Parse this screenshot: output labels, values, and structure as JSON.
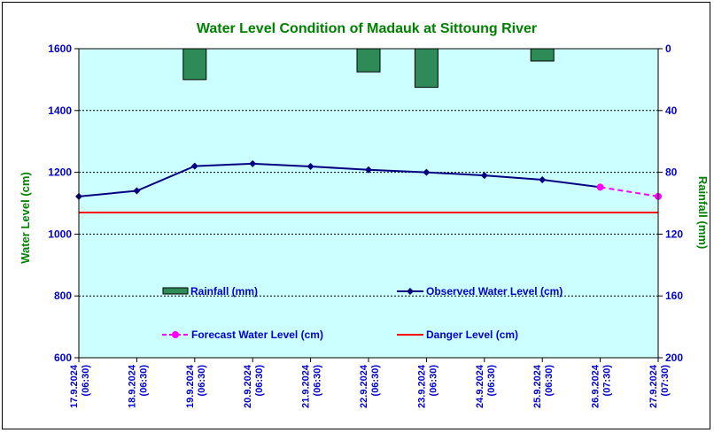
{
  "chart_data": {
    "type": "line",
    "title": "Water Level Condition of Madauk at Sittoung River",
    "ylabel_left": "Water Level (cm)",
    "ylabel_right": "Rainfall (mm)",
    "y_left_range": [
      600,
      1600
    ],
    "y_left_ticks": [
      "600",
      "800",
      "1000",
      "1200",
      "1400",
      "1600"
    ],
    "y_right_range": [
      0,
      200
    ],
    "y_right_reversed": true,
    "y_right_ticks": [
      "0",
      "40",
      "80",
      "120",
      "160",
      "200"
    ],
    "categories": [
      [
        "17.9.2024",
        "(06:30)"
      ],
      [
        "18.9.2024",
        "(06:30)"
      ],
      [
        "19.9.2024",
        "(06:30)"
      ],
      [
        "20.9.2024",
        "(06:30)"
      ],
      [
        "21.9.2024",
        "(06:30)"
      ],
      [
        "22.9.2024",
        "(06:30)"
      ],
      [
        "23.9.2024",
        "(06:30)"
      ],
      [
        "24.9.2024",
        "(06:30)"
      ],
      [
        "25.9.2024",
        "(06:30)"
      ],
      [
        "26.9.2024",
        "(07:30)"
      ],
      [
        "27.9.2024",
        "(07:30)"
      ]
    ],
    "grid": true,
    "series": [
      {
        "name": "Rainfall (mm)",
        "type": "bar",
        "axis": "right",
        "color": "#2e8b57",
        "values": [
          null,
          null,
          20,
          null,
          null,
          15,
          25,
          null,
          8,
          null,
          null
        ]
      },
      {
        "name": "Observed Water Level (cm)",
        "type": "line",
        "axis": "left",
        "color": "#000080",
        "values": [
          1122,
          1140,
          1220,
          1228,
          1219,
          1208,
          1200,
          1190,
          1176,
          1152,
          null
        ]
      },
      {
        "name": "Forecast Water Level (cm)",
        "type": "line-dashed",
        "axis": "left",
        "color": "#ff00ff",
        "values": [
          null,
          null,
          null,
          null,
          null,
          null,
          null,
          null,
          null,
          1152,
          1122
        ]
      },
      {
        "name": "Danger Level (cm)",
        "type": "hline",
        "axis": "left",
        "color": "#ff0000",
        "value": 1070
      }
    ]
  },
  "colors": {
    "plot_background": "#ccffff",
    "title": "#008000",
    "axis_text": "#0000cc",
    "axis_title": "#008000"
  }
}
